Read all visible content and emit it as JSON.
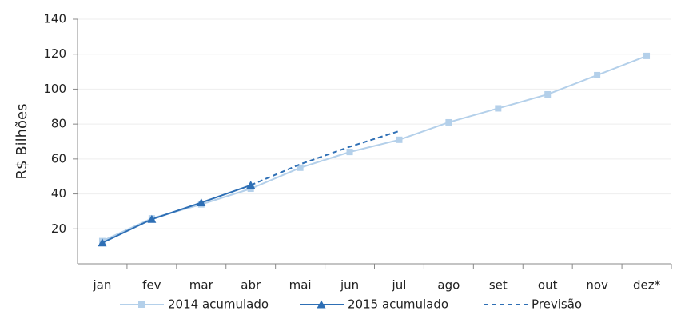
{
  "chart_data": {
    "type": "line",
    "y_label": "R$ Bilhões",
    "categories": [
      "jan",
      "fev",
      "mar",
      "abr",
      "mai",
      "jun",
      "jul",
      "ago",
      "set",
      "out",
      "nov",
      "dez*"
    ],
    "series": [
      {
        "name": "2014 acumulado",
        "color": "#b4d0ea",
        "marker": "square",
        "dash": false,
        "values": [
          13,
          26,
          34,
          43,
          55,
          64,
          71,
          81,
          89,
          97,
          108,
          119
        ]
      },
      {
        "name": "2015 acumulado",
        "color": "#2e6fb5",
        "marker": "triangle",
        "dash": false,
        "values": [
          12,
          25.5,
          35,
          45,
          null,
          null,
          null,
          null,
          null,
          null,
          null,
          null
        ]
      },
      {
        "name": "Previsão",
        "color": "#2e6fb5",
        "marker": "none",
        "dash": true,
        "values": [
          null,
          null,
          null,
          45,
          57,
          67,
          76,
          null,
          null,
          null,
          null,
          null
        ]
      }
    ],
    "ylim": [
      0,
      140
    ],
    "yticks": [
      20,
      40,
      60,
      80,
      100,
      120,
      140
    ],
    "grid": true
  }
}
